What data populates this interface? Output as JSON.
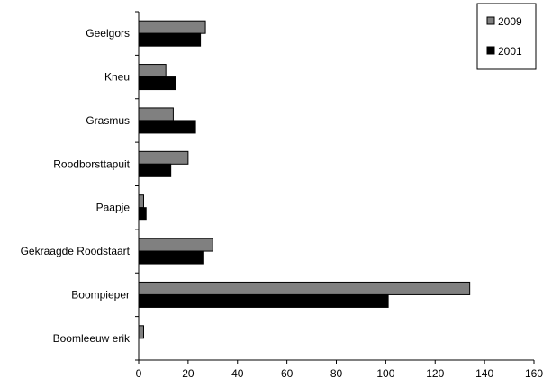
{
  "chart_data": {
    "type": "bar",
    "orientation": "horizontal",
    "categories": [
      "Geelgors",
      "Kneu",
      "Grasmus",
      "Roodborsttapuit",
      "Paapje",
      "Gekraagde Roodstaart",
      "Boompieper",
      "Boomleeuw erik"
    ],
    "series": [
      {
        "name": "2009",
        "color": "#808080",
        "values": [
          27,
          11,
          14,
          20,
          2,
          30,
          134,
          2
        ]
      },
      {
        "name": "2001",
        "color": "#000000",
        "values": [
          25,
          15,
          23,
          13,
          3,
          26,
          101,
          0
        ]
      }
    ],
    "x_ticks": [
      "0",
      "20",
      "40",
      "60",
      "80",
      "100",
      "120",
      "140",
      "160"
    ],
    "xlim": [
      0,
      160
    ],
    "grid": false,
    "legend_position": "top-right"
  }
}
